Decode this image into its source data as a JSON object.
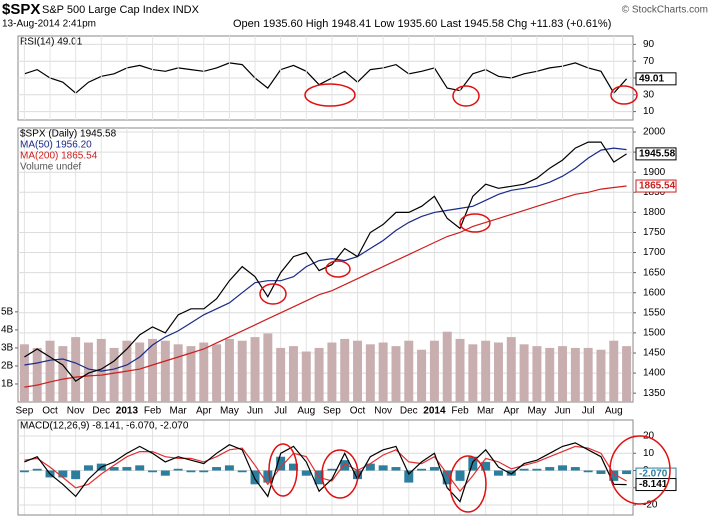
{
  "header": {
    "symbol": "$SPX",
    "name": "S&P 500 Large Cap Index INDX",
    "date": "13-Aug-2014 2:41pm",
    "quote": "Open 1935.60  High 1948.41  Low 1935.60  Last 1945.58  Chg +11.83 (+0.61%)",
    "source": "© StockCharts.com"
  },
  "chart_data": [
    {
      "type": "line",
      "ylim": [
        0,
        100
      ],
      "yticks": [
        10,
        30,
        50,
        70,
        90
      ],
      "grid": true,
      "series": [
        {
          "name": "RSI(14) 49.01",
          "color": "#000000",
          "end_label": "49.01",
          "values": [
            55,
            60,
            50,
            45,
            32,
            45,
            52,
            55,
            62,
            65,
            60,
            58,
            62,
            60,
            58,
            62,
            68,
            66,
            50,
            38,
            60,
            65,
            58,
            42,
            50,
            58,
            45,
            60,
            62,
            66,
            55,
            58,
            62,
            38,
            35,
            55,
            60,
            52,
            50,
            55,
            58,
            62,
            64,
            68,
            62,
            58,
            32,
            49.01
          ]
        }
      ]
    },
    {
      "type": "line",
      "categories": [
        "Sep",
        null,
        "Oct",
        null,
        "Nov",
        null,
        "Dec",
        null,
        "2013",
        null,
        "Feb",
        null,
        "Mar",
        null,
        "Apr",
        null,
        "May",
        null,
        "Jun",
        null,
        "Jul",
        null,
        "Aug",
        null,
        "Sep",
        null,
        "Oct",
        null,
        "Nov",
        null,
        "Dec",
        null,
        "2014",
        null,
        "Feb",
        null,
        "Mar",
        null,
        "Apr",
        null,
        "May",
        null,
        "Jun",
        null,
        "Jul",
        null,
        "Aug",
        null
      ],
      "ylim": [
        1328,
        2010
      ],
      "yticks": [
        1350,
        1400,
        1450,
        1500,
        1550,
        1600,
        1650,
        1700,
        1750,
        1800,
        1850,
        1900,
        1950,
        2000
      ],
      "grid": true,
      "y2lim": [
        0,
        15200000000
      ],
      "y2ticks": [
        {
          "value": 1000000000,
          "label": "1B"
        },
        {
          "value": 2000000000,
          "label": "2B"
        },
        {
          "value": 3000000000,
          "label": "3B"
        },
        {
          "value": 4000000000,
          "label": "4B"
        },
        {
          "value": 5000000000,
          "label": "5B"
        }
      ],
      "series": [
        {
          "name": "Volume undef",
          "type": "bar",
          "axis": "y2",
          "color": "#c9aeb0",
          "values": [
            3200000000,
            3000000000,
            3400000000,
            3100000000,
            3600000000,
            3300000000,
            3500000000,
            3000000000,
            3400000000,
            3300000000,
            3500000000,
            3400000000,
            3200000000,
            3100000000,
            3300000000,
            3200000000,
            3500000000,
            3400000000,
            3600000000,
            3800000000,
            3000000000,
            3100000000,
            2800000000,
            3000000000,
            3300000000,
            3500000000,
            3400000000,
            3200000000,
            3300000000,
            3100000000,
            3400000000,
            2900000000,
            3400000000,
            3900000000,
            3500000000,
            3200000000,
            3400000000,
            3300000000,
            3600000000,
            3200000000,
            3100000000,
            3000000000,
            3100000000,
            3000000000,
            3000000000,
            2900000000,
            3400000000,
            3100000000
          ]
        },
        {
          "name": "MA(200) 1865.54",
          "color": "#cc1f1f",
          "end_label": "1865.54",
          "values": [
            1365,
            1370,
            1378,
            1385,
            1390,
            1393,
            1395,
            1400,
            1405,
            1410,
            1420,
            1430,
            1440,
            1450,
            1460,
            1475,
            1490,
            1505,
            1520,
            1535,
            1550,
            1565,
            1580,
            1595,
            1605,
            1620,
            1635,
            1650,
            1665,
            1680,
            1695,
            1710,
            1725,
            1740,
            1750,
            1765,
            1775,
            1785,
            1795,
            1805,
            1815,
            1825,
            1835,
            1845,
            1850,
            1858,
            1862,
            1865.54
          ]
        },
        {
          "name": "MA(50) 1956.20",
          "color": "#1a2a8a",
          "values": [
            1420,
            1425,
            1432,
            1435,
            1425,
            1410,
            1405,
            1410,
            1420,
            1440,
            1470,
            1490,
            1505,
            1525,
            1545,
            1560,
            1575,
            1600,
            1625,
            1630,
            1630,
            1640,
            1665,
            1680,
            1685,
            1680,
            1690,
            1710,
            1730,
            1755,
            1775,
            1790,
            1800,
            1805,
            1810,
            1815,
            1830,
            1845,
            1855,
            1860,
            1865,
            1875,
            1890,
            1910,
            1935,
            1955,
            1960,
            1956.2
          ]
        },
        {
          "name": "$SPX (Daily) 1945.58",
          "color": "#000000",
          "end_label": "1945.58",
          "values": [
            1440,
            1460,
            1440,
            1420,
            1380,
            1400,
            1410,
            1430,
            1460,
            1495,
            1515,
            1500,
            1545,
            1560,
            1560,
            1585,
            1630,
            1665,
            1640,
            1590,
            1650,
            1690,
            1700,
            1655,
            1670,
            1710,
            1690,
            1750,
            1770,
            1800,
            1800,
            1815,
            1840,
            1785,
            1760,
            1840,
            1870,
            1860,
            1865,
            1870,
            1885,
            1910,
            1930,
            1960,
            1975,
            1975,
            1925,
            1945.58
          ]
        }
      ]
    },
    {
      "type": "line",
      "legend": "MACD(12,26,9) -8.141, -6.070, -2.070",
      "ylim": [
        -25.8,
        29.3
      ],
      "yticks": [
        -20,
        -10,
        0,
        10,
        20
      ],
      "grid": true,
      "series": [
        {
          "type": "bar",
          "color": "#2c7e9e",
          "end_label": "-2.070",
          "values": [
            -1,
            1,
            -4,
            -4,
            -5,
            3,
            4,
            2,
            2,
            3,
            -1,
            -3,
            1,
            -1,
            -1,
            2,
            3,
            -1,
            -8,
            -7,
            8,
            4,
            -3,
            -8,
            1,
            6,
            -5,
            4,
            3,
            2,
            -7,
            1,
            2,
            -8,
            -6,
            8,
            5,
            -3,
            -3,
            1,
            1,
            2,
            3,
            2,
            -1,
            -2,
            -6,
            -2.07
          ]
        },
        {
          "color": "#e03030",
          "values": [
            6,
            7,
            2,
            -4,
            -10,
            -8,
            -2,
            3,
            8,
            11,
            11,
            8,
            7,
            7,
            5,
            8,
            12,
            13,
            3,
            -8,
            2,
            10,
            8,
            -4,
            -6,
            4,
            0,
            4,
            9,
            12,
            5,
            4,
            8,
            -2,
            -12,
            -3,
            7,
            5,
            1,
            3,
            5,
            8,
            11,
            14,
            13,
            10,
            -2,
            -6.07
          ]
        },
        {
          "color": "#000000",
          "end_label": "-8.141",
          "values": [
            5,
            8,
            -2,
            -8,
            -15,
            -5,
            2,
            5,
            10,
            14,
            10,
            5,
            8,
            6,
            4,
            10,
            15,
            12,
            -5,
            -15,
            10,
            14,
            5,
            -12,
            -5,
            10,
            -5,
            8,
            12,
            14,
            -2,
            5,
            10,
            -10,
            -18,
            5,
            12,
            2,
            -2,
            4,
            6,
            10,
            14,
            16,
            12,
            8,
            -8,
            -8.141
          ]
        }
      ]
    }
  ]
}
